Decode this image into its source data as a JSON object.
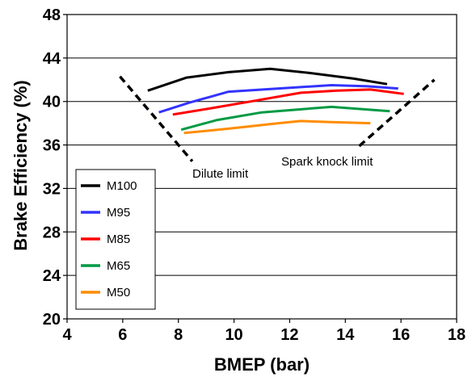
{
  "chart_data": {
    "type": "line",
    "xlabel": "BMEP (bar)",
    "ylabel": "Brake Efficiency (%)",
    "xlim": [
      4,
      18
    ],
    "ylim": [
      20,
      48
    ],
    "xticks": [
      4,
      6,
      8,
      10,
      12,
      14,
      16,
      18
    ],
    "yticks": [
      20,
      24,
      28,
      32,
      36,
      40,
      44,
      48
    ],
    "grid": "horizontal",
    "legend_position": "bottom-left",
    "series": [
      {
        "name": "M100",
        "color": "#000000",
        "x": [
          6.9,
          8.3,
          9.8,
          11.3,
          12.8,
          14.3,
          15.5
        ],
        "y": [
          41.0,
          42.2,
          42.7,
          43.0,
          42.6,
          42.1,
          41.6
        ]
      },
      {
        "name": "M95",
        "color": "#3333ff",
        "x": [
          7.3,
          8.4,
          9.8,
          11.6,
          13.5,
          14.8,
          15.9
        ],
        "y": [
          39.0,
          39.9,
          40.9,
          41.2,
          41.5,
          41.4,
          41.2
        ]
      },
      {
        "name": "M85",
        "color": "#ff0000",
        "x": [
          7.8,
          9.0,
          10.6,
          12.4,
          13.7,
          14.9,
          16.1
        ],
        "y": [
          38.8,
          39.3,
          40.0,
          40.8,
          41.0,
          41.1,
          40.7
        ]
      },
      {
        "name": "M65",
        "color": "#009a44",
        "x": [
          8.1,
          9.4,
          11.0,
          12.5,
          13.5,
          15.6
        ],
        "y": [
          37.4,
          38.3,
          39.0,
          39.3,
          39.5,
          39.1
        ]
      },
      {
        "name": "M50",
        "color": "#ff8c00",
        "x": [
          8.2,
          9.8,
          11.6,
          12.4,
          13.5,
          14.9
        ],
        "y": [
          37.1,
          37.5,
          38.0,
          38.2,
          38.1,
          38.0
        ]
      }
    ],
    "limit_lines": [
      {
        "name": "dilute-limit-line",
        "x": [
          5.9,
          8.5
        ],
        "y": [
          42.3,
          34.5
        ]
      },
      {
        "name": "spark-knock-limit-line",
        "x": [
          14.5,
          17.2
        ],
        "y": [
          35.9,
          42.0
        ]
      }
    ],
    "annotations": {
      "dilute": "Dilute limit",
      "spark": "Spark knock limit"
    }
  }
}
